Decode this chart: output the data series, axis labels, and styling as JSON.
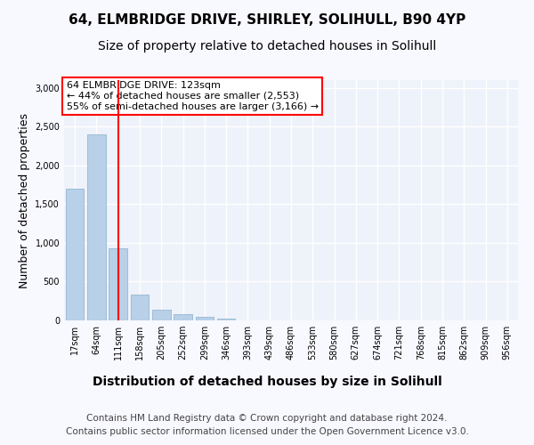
{
  "title1": "64, ELMBRIDGE DRIVE, SHIRLEY, SOLIHULL, B90 4YP",
  "title2": "Size of property relative to detached houses in Solihull",
  "xlabel": "Distribution of detached houses by size in Solihull",
  "ylabel": "Number of detached properties",
  "footnote1": "Contains HM Land Registry data © Crown copyright and database right 2024.",
  "footnote2": "Contains public sector information licensed under the Open Government Licence v3.0.",
  "bins": [
    "17sqm",
    "64sqm",
    "111sqm",
    "158sqm",
    "205sqm",
    "252sqm",
    "299sqm",
    "346sqm",
    "393sqm",
    "439sqm",
    "486sqm",
    "533sqm",
    "580sqm",
    "627sqm",
    "674sqm",
    "721sqm",
    "768sqm",
    "815sqm",
    "862sqm",
    "909sqm",
    "956sqm"
  ],
  "values": [
    1700,
    2400,
    930,
    330,
    140,
    80,
    50,
    20,
    5,
    0,
    0,
    0,
    0,
    0,
    0,
    0,
    0,
    0,
    0,
    0
  ],
  "bar_color": "#b8d0e8",
  "bar_edge_color": "#8ab0cc",
  "red_line_x": 2,
  "annotation_text": "64 ELMBRIDGE DRIVE: 123sqm\n← 44% of detached houses are smaller (2,553)\n55% of semi-detached houses are larger (3,166) →",
  "ylim": [
    0,
    3100
  ],
  "yticks": [
    0,
    500,
    1000,
    1500,
    2000,
    2500,
    3000
  ],
  "background_color": "#eef2fa",
  "grid_color": "#ffffff",
  "fig_bg": "#f8f8ff",
  "title1_fontsize": 11,
  "title2_fontsize": 10,
  "xlabel_fontsize": 10,
  "ylabel_fontsize": 9,
  "annotation_fontsize": 8,
  "footnote_fontsize": 7.5,
  "tick_fontsize": 7
}
